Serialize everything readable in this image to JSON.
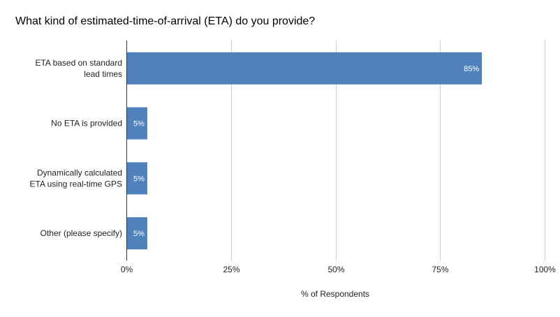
{
  "chart_data": {
    "type": "bar",
    "orientation": "horizontal",
    "title": "What kind of estimated-time-of-arrival (ETA) do you provide?",
    "categories": [
      [
        "ETA based on standard",
        "lead times"
      ],
      [
        "No ETA is provided"
      ],
      [
        "Dynamically calculated",
        "ETA using real-time GPS"
      ],
      [
        "Other (please specify)"
      ]
    ],
    "values": [
      85,
      5,
      5,
      5
    ],
    "data_labels": [
      "85%",
      "5%",
      "5%",
      "5%"
    ],
    "xlabel": "% of Respondents",
    "ylabel": "",
    "xlim": [
      0,
      100
    ],
    "xticks": [
      0,
      25,
      50,
      75,
      100
    ],
    "xtick_labels": [
      "0%",
      "25%",
      "50%",
      "75%",
      "100%"
    ],
    "grid": true,
    "bar_color": "#4f81bd",
    "grid_color": "#cccccc"
  }
}
